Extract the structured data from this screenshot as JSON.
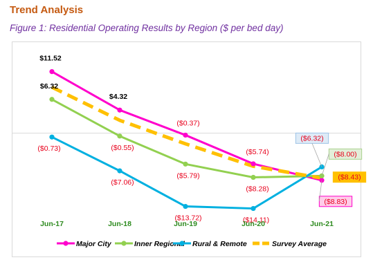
{
  "heading": "Trend Analysis",
  "caption": "Figure 1: Residential Operating Results by Region ($ per bed day)",
  "colors": {
    "heading": "#c55a11",
    "caption": "#7030a0",
    "major_city": "#ff00cc",
    "inner_regional": "#92d050",
    "rural_remote": "#00b0e0",
    "survey_average": "#ffc000",
    "positive_label": "#000000",
    "negative_label": "#e8001c",
    "x_tick": "#2e8b1f"
  },
  "chart_data": {
    "type": "line",
    "title": "",
    "xlabel": "",
    "ylabel": "",
    "categories": [
      "Jun-17",
      "Jun-18",
      "Jun-19",
      "Jun-20",
      "Jun-21"
    ],
    "ylim": [
      -20,
      16
    ],
    "grid": false,
    "legend_position": "bottom",
    "series": [
      {
        "name": "Major City",
        "key": "major_city",
        "values": [
          11.52,
          4.32,
          -0.37,
          -5.74,
          -8.83
        ],
        "labels": [
          "$11.52",
          "$4.32",
          "($0.37)",
          "($5.74)",
          "($8.83)"
        ],
        "dashed": false
      },
      {
        "name": "Inner Regional",
        "key": "inner_regional",
        "values": [
          6.32,
          -0.55,
          -5.79,
          -8.28,
          -8.0
        ],
        "labels": [
          "$6.32",
          "($0.55)",
          "($5.79)",
          "($8.28)",
          "($8.00)"
        ],
        "dashed": false
      },
      {
        "name": "Rural & Remote",
        "key": "rural_remote",
        "values": [
          -0.73,
          -7.06,
          -13.72,
          -14.11,
          -6.32
        ],
        "labels": [
          "($0.73)",
          "($7.06)",
          "($13.72)",
          "($14.11)",
          "($6.32)"
        ],
        "dashed": false
      },
      {
        "name": "Survey Average",
        "key": "survey_average",
        "values": [
          8.6,
          2.4,
          -2.0,
          -6.2,
          -8.43
        ],
        "labels": [
          "",
          "",
          "",
          "",
          "($8.43)"
        ],
        "dashed": true
      }
    ]
  }
}
